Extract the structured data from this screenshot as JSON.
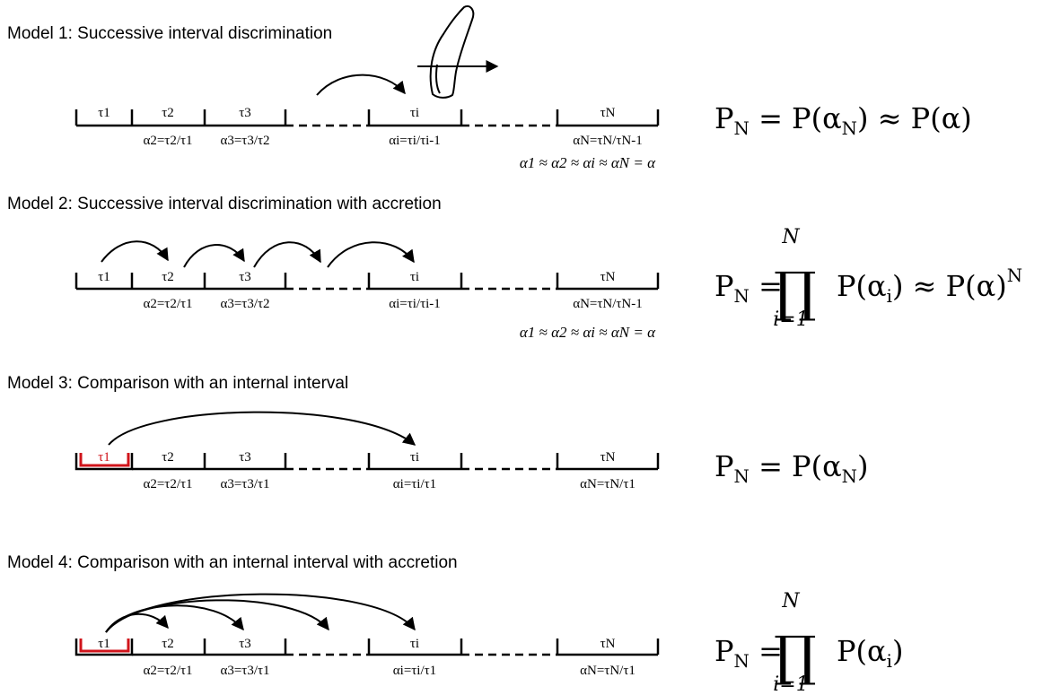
{
  "models": [
    {
      "title": "Model 1: Successive interval discrimination",
      "tau_labels": [
        "τ1",
        "τ2",
        "τ3",
        "τi",
        "τN"
      ],
      "ratios": [
        "α2=τ2/τ1",
        "α3=τ3/τ2",
        "αi=τi/τi-1",
        "αN=τN/τN-1"
      ],
      "approx": "α1 ≈ α2 ≈ αi ≈ αN = α",
      "formula": "PN = P(αN) ≈ P(α)",
      "reference_red": false,
      "arrows": "single-to-i"
    },
    {
      "title": "Model 2: Successive interval discrimination with accretion",
      "tau_labels": [
        "τ1",
        "τ2",
        "τ3",
        "τi",
        "τN"
      ],
      "ratios": [
        "α2=τ2/τ1",
        "α3=τ3/τ2",
        "αi=τi/τi-1",
        "αN=τN/τN-1"
      ],
      "approx": "α1 ≈ α2 ≈ αi ≈ αN = α",
      "formula": "PN = ∏ P(αi) ≈ P(α)^N",
      "product": {
        "symbol": "∏",
        "upper": "N",
        "lower": "i=1"
      },
      "reference_red": false,
      "arrows": "successive-chain"
    },
    {
      "title": "Model 3: Comparison with an internal interval",
      "tau_labels": [
        "τ1",
        "τ2",
        "τ3",
        "τi",
        "τN"
      ],
      "ratios": [
        "α2=τ2/τ1",
        "α3=τ3/τ1",
        "αi=τi/τ1",
        "αN=τN/τ1"
      ],
      "formula": "PN = P(αN)",
      "reference_red": true,
      "arrows": "first-to-i"
    },
    {
      "title": "Model 4: Comparison with an internal interval with accretion",
      "tau_labels": [
        "τ1",
        "τ2",
        "τ3",
        "τi",
        "τN"
      ],
      "ratios": [
        "α2=τ2/τ1",
        "α3=τ3/τ1",
        "αi=τi/τ1",
        "αN=τN/τ1"
      ],
      "formula": "PN = ∏ P(αi)",
      "product": {
        "symbol": "∏",
        "upper": "N",
        "lower": "i=1"
      },
      "reference_red": true,
      "arrows": "fan-from-first"
    }
  ],
  "colors": {
    "line": "#000000",
    "reference": "#d0141b"
  },
  "icons": [
    "finger-swipe-icon"
  ]
}
